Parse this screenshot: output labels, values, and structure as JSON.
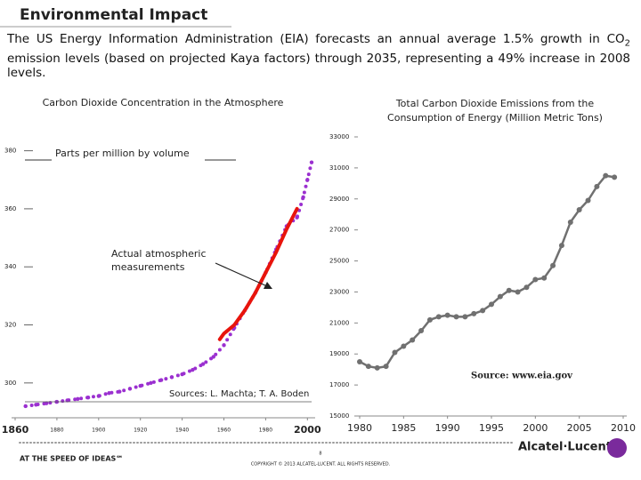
{
  "slide": {
    "title": "Environmental Impact",
    "body": [
      "The US Energy Information Administration (EIA) forecasts an annual average 1.5% growth in CO",
      "2",
      " emission levels (based on projected Kaya factors) through 2035, representing a 49% increase in 2008 levels."
    ]
  },
  "chart_data": [
    {
      "type": "line",
      "title": [
        "Carbon Dioxide Concentration in the Atmosphere"
      ],
      "annotations": [
        "Parts per million by volume",
        "Actual atmospheric",
        "measurements",
        "Sources: L. Machta; T. A. Boden"
      ],
      "xlim": [
        1860,
        2002
      ],
      "ylim": [
        288,
        386
      ],
      "xticks": [
        1860,
        1880,
        1900,
        1920,
        1940,
        1960,
        1980,
        2000
      ],
      "yticks": [
        300,
        320,
        340,
        360,
        380
      ],
      "series": [
        {
          "color": "#9b30d0",
          "style": "dotted",
          "x": [
            1865,
            1870,
            1875,
            1880,
            1885,
            1890,
            1895,
            1900,
            1905,
            1910,
            1915,
            1920,
            1925,
            1930,
            1935,
            1940,
            1945,
            1950,
            1955,
            1960,
            1965,
            1970,
            1975,
            1980,
            1985,
            1990,
            1995,
            1998,
            2000,
            2002
          ],
          "values": [
            292,
            292.5,
            293,
            293.5,
            294,
            294.5,
            295,
            295.5,
            296.5,
            297,
            298,
            299,
            300,
            301,
            302,
            303,
            304.5,
            306.5,
            309,
            313,
            319,
            325,
            331,
            338,
            346,
            354,
            357,
            364,
            370,
            376
          ]
        },
        {
          "color": "#e8140c",
          "style": "solid",
          "x": [
            1958,
            1960,
            1965,
            1970,
            1975,
            1980,
            1985,
            1990,
            1995
          ],
          "values": [
            315,
            317,
            320,
            325,
            331,
            338,
            345,
            353,
            360
          ]
        }
      ]
    },
    {
      "type": "line",
      "title": [
        "Total Carbon Dioxide Emissions from the",
        "Consumption of Energy (Million Metric Tons)"
      ],
      "annotations": [
        "Source: www.eia.gov"
      ],
      "xlim": [
        1980,
        2010
      ],
      "ylim": [
        15000,
        33000
      ],
      "xticks": [
        1980,
        1985,
        1990,
        1995,
        2000,
        2005,
        2010
      ],
      "yticks": [
        15000,
        17000,
        19000,
        21000,
        23000,
        25000,
        27000,
        29000,
        31000,
        33000
      ],
      "series": [
        {
          "color": "#707070",
          "style": "solid",
          "x": [
            1980,
            1981,
            1982,
            1983,
            1984,
            1985,
            1986,
            1987,
            1988,
            1989,
            1990,
            1991,
            1992,
            1993,
            1994,
            1995,
            1996,
            1997,
            1998,
            1999,
            2000,
            2001,
            2002,
            2003,
            2004,
            2005,
            2006,
            2007,
            2008,
            2009
          ],
          "values": [
            18500,
            18200,
            18100,
            18200,
            19100,
            19500,
            19900,
            20500,
            21200,
            21400,
            21500,
            21400,
            21400,
            21600,
            21800,
            22200,
            22700,
            23100,
            23000,
            23300,
            23800,
            23900,
            24700,
            26000,
            27500,
            28300,
            28900,
            29800,
            30500,
            30400
          ]
        }
      ]
    }
  ],
  "footer": {
    "tagline": "AT THE SPEED OF IDEAS℠",
    "brand": "Alcatel·Lucent",
    "page": "8",
    "copyright": "COPYRIGHT © 2013 ALCATEL-LUCENT. ALL RIGHTS RESERVED."
  }
}
